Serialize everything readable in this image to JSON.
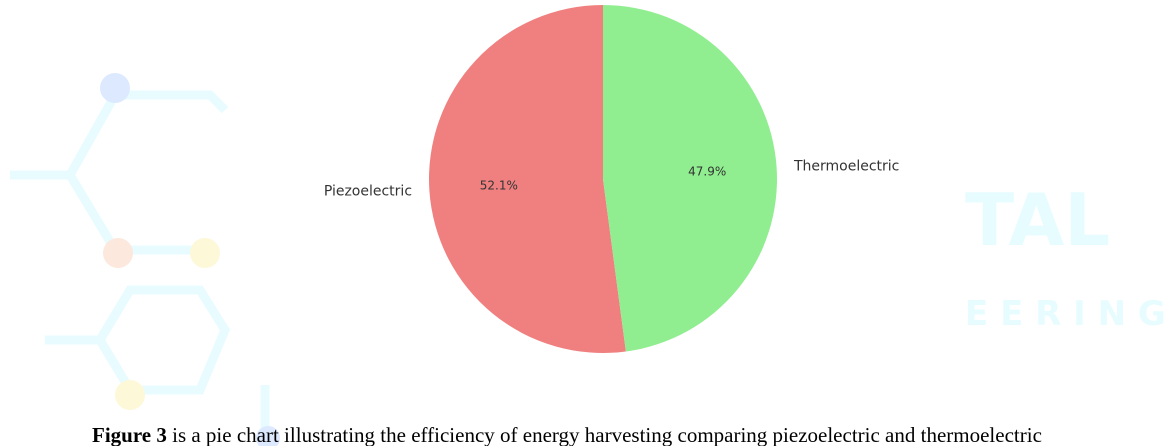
{
  "chart_data": {
    "type": "pie",
    "categories": [
      "Piezoelectric",
      "Thermoelectric"
    ],
    "values": [
      52.1,
      47.9
    ],
    "value_labels": [
      "52.1%",
      "47.9%"
    ],
    "colors": [
      "#f08080",
      "#90ee90"
    ],
    "start_angle": 90
  },
  "watermark": [
    "TAL",
    "E E R I N G"
  ],
  "caption": {
    "label": "Figure 3",
    "text": " is a pie chart illustrating the efficiency of energy harvesting comparing piezoelectric and thermoelectric"
  }
}
